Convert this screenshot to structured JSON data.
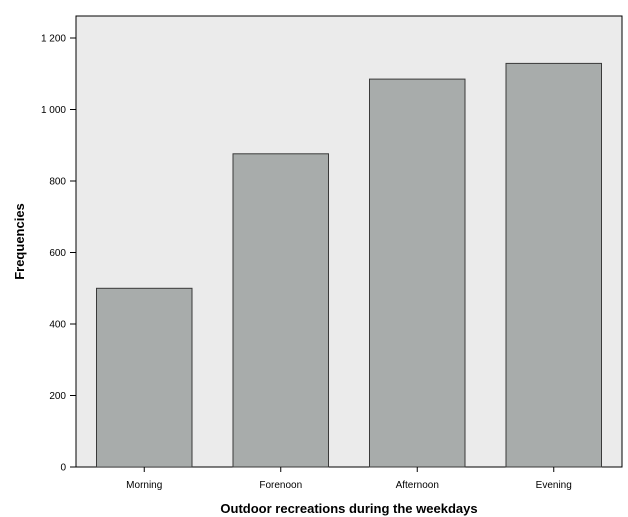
{
  "chart_data": {
    "type": "bar",
    "title": "",
    "xlabel": "Outdoor recreations during the weekdays",
    "ylabel": "Frequencies",
    "categories": [
      "Morning",
      "Forenoon",
      "Afternoon",
      "Evening"
    ],
    "values": [
      500,
      876,
      1085,
      1129
    ],
    "ylim": [
      0,
      1200
    ],
    "yticks": [
      0,
      200,
      400,
      600,
      800,
      1000,
      1200
    ],
    "ytick_labels": [
      "0",
      "200",
      "400",
      "600",
      "800",
      "1 000",
      "1 200"
    ],
    "grid": false,
    "legend": "none",
    "colors": {
      "plot_background": "#ebebeb",
      "bar_fill": "#a8acab",
      "bar_stroke": "#3a3a3a",
      "axis": "#000000"
    }
  }
}
